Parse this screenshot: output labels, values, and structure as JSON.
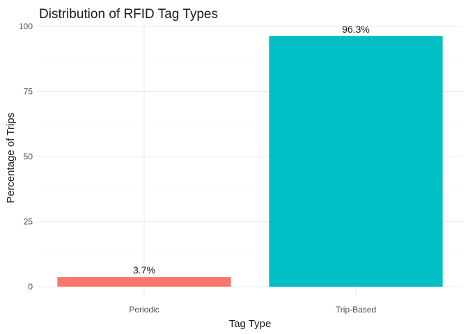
{
  "chart_data": {
    "type": "bar",
    "title": "Distribution of RFID Tag Types",
    "xlabel": "Tag Type",
    "ylabel": "Percentage of Trips",
    "categories": [
      "Periodic",
      "Trip-Based"
    ],
    "values": [
      3.7,
      96.3
    ],
    "data_labels": [
      "3.7%",
      "96.3%"
    ],
    "colors": [
      "#F8766D",
      "#00BFC4"
    ],
    "ylim": [
      0,
      100
    ],
    "yticks": [
      0,
      25,
      50,
      75,
      100
    ],
    "ytick_labels": [
      "0",
      "25",
      "50",
      "75",
      "100"
    ],
    "grid": true,
    "legend": "none"
  }
}
